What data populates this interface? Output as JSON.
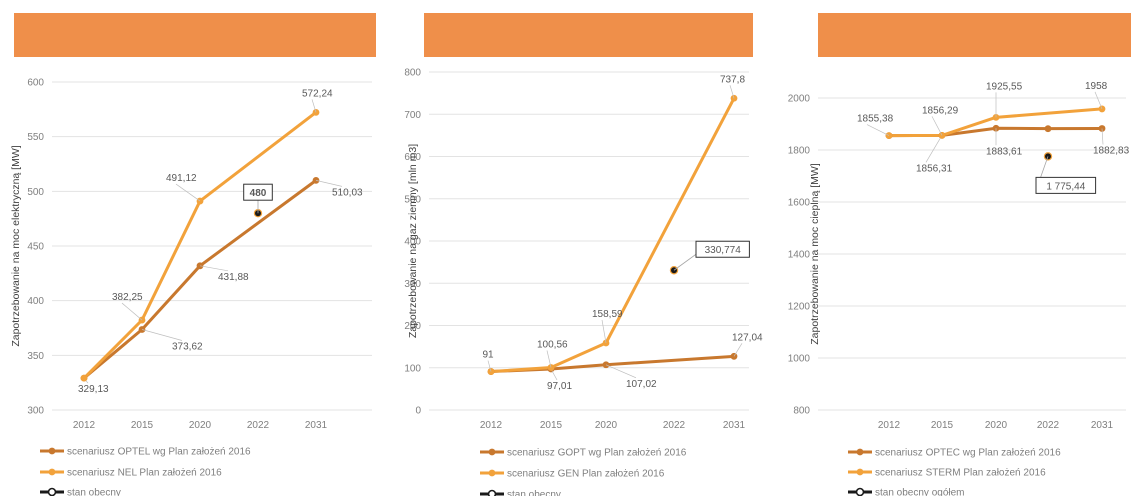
{
  "colors": {
    "banner": "#EF8F4A",
    "series_dark": "#C8782E",
    "series_light": "#F2A23B",
    "marker_current": "#1a1a1a",
    "grid": "#e3e3e3",
    "text": "#7f7f7f"
  },
  "chart_data": [
    {
      "type": "line",
      "title": "",
      "x": [
        "2012",
        "2015",
        "2020",
        "2022",
        "2031"
      ],
      "ylabel": "Zapotrzebowanie na moc elektryczną [MW]",
      "xlabel": "",
      "ylim": [
        300,
        600
      ],
      "yticks": [
        300,
        350,
        400,
        450,
        500,
        550,
        600
      ],
      "grid": true,
      "legend_position": "bottom",
      "series": [
        {
          "name": "scenariusz OPTEL wg Plan założeń 2016",
          "color": "#C8782E",
          "points": [
            {
              "x": "2012",
              "y": 329.13,
              "label": "329,13"
            },
            {
              "x": "2015",
              "y": 373.62,
              "label": "373,62"
            },
            {
              "x": "2020",
              "y": 431.88,
              "label": "431,88"
            },
            {
              "x": "2031",
              "y": 510.03,
              "label": "510,03"
            }
          ]
        },
        {
          "name": "scenariusz NEL Plan założeń 2016",
          "color": "#F2A23B",
          "points": [
            {
              "x": "2012",
              "y": 329.13,
              "label": ""
            },
            {
              "x": "2015",
              "y": 382.25,
              "label": "382,25"
            },
            {
              "x": "2020",
              "y": 491.12,
              "label": "491,12"
            },
            {
              "x": "2031",
              "y": 572.24,
              "label": "572,24"
            }
          ]
        },
        {
          "name": "stan obecny",
          "color": "#1a1a1a",
          "marker_only": true,
          "points": [
            {
              "x": "2022",
              "y": 480,
              "label": "480"
            }
          ]
        }
      ]
    },
    {
      "type": "line",
      "title": "",
      "x": [
        "2012",
        "2015",
        "2020",
        "2022",
        "2031"
      ],
      "ylabel": "Zapotrzebowanie na gaz ziemny [mln m3]",
      "xlabel": "",
      "ylim": [
        0,
        800
      ],
      "yticks": [
        0,
        100,
        200,
        300,
        400,
        500,
        600,
        700,
        800
      ],
      "grid": true,
      "legend_position": "bottom",
      "series": [
        {
          "name": "scenariusz GOPT wg Plan założeń 2016",
          "color": "#C8782E",
          "points": [
            {
              "x": "2012",
              "y": 91,
              "label": ""
            },
            {
              "x": "2015",
              "y": 97.01,
              "label": "97,01"
            },
            {
              "x": "2020",
              "y": 107.02,
              "label": "107,02"
            },
            {
              "x": "2031",
              "y": 127.04,
              "label": "127,04"
            }
          ]
        },
        {
          "name": "scenariusz GEN Plan założeń 2016",
          "color": "#F2A23B",
          "points": [
            {
              "x": "2012",
              "y": 91,
              "label": "91"
            },
            {
              "x": "2015",
              "y": 100.56,
              "label": "100,56"
            },
            {
              "x": "2020",
              "y": 158.59,
              "label": "158,59"
            },
            {
              "x": "2031",
              "y": 737.8,
              "label": "737,8"
            }
          ]
        },
        {
          "name": "stan obecny",
          "color": "#1a1a1a",
          "marker_only": true,
          "points": [
            {
              "x": "2022",
              "y": 330.774,
              "label": "330,774"
            }
          ]
        }
      ]
    },
    {
      "type": "line",
      "title": "",
      "x": [
        "2012",
        "2015",
        "2020",
        "2022",
        "2031"
      ],
      "ylabel": "Zapotrzebowanie na moc cieplną [MW]",
      "xlabel": "",
      "ylim": [
        800,
        2000
      ],
      "yticks": [
        800,
        1000,
        1200,
        1400,
        1600,
        1800,
        2000
      ],
      "grid": true,
      "legend_position": "bottom",
      "series": [
        {
          "name": "scenariusz OPTEC wg Plan założeń 2016",
          "color": "#C8782E",
          "points": [
            {
              "x": "2012",
              "y": 1855.38,
              "label": ""
            },
            {
              "x": "2015",
              "y": 1856.31,
              "label": "1856,31"
            },
            {
              "x": "2020",
              "y": 1883.61,
              "label": "1883,61"
            },
            {
              "x": "2022",
              "y": 1882,
              "label": ""
            },
            {
              "x": "2031",
              "y": 1882.83,
              "label": "1882,83"
            }
          ]
        },
        {
          "name": "scenariusz STERM Plan założeń 2016",
          "color": "#F2A23B",
          "points": [
            {
              "x": "2012",
              "y": 1855.38,
              "label": "1855,38"
            },
            {
              "x": "2015",
              "y": 1856.29,
              "label": "1856,29"
            },
            {
              "x": "2020",
              "y": 1925.55,
              "label": "1925,55"
            },
            {
              "x": "2031",
              "y": 1958,
              "label": "1958"
            }
          ]
        },
        {
          "name": "stan obecny ogółem",
          "color": "#1a1a1a",
          "marker_only": true,
          "points": [
            {
              "x": "2022",
              "y": 1775.44,
              "label": "1 775,44"
            }
          ]
        }
      ]
    }
  ]
}
